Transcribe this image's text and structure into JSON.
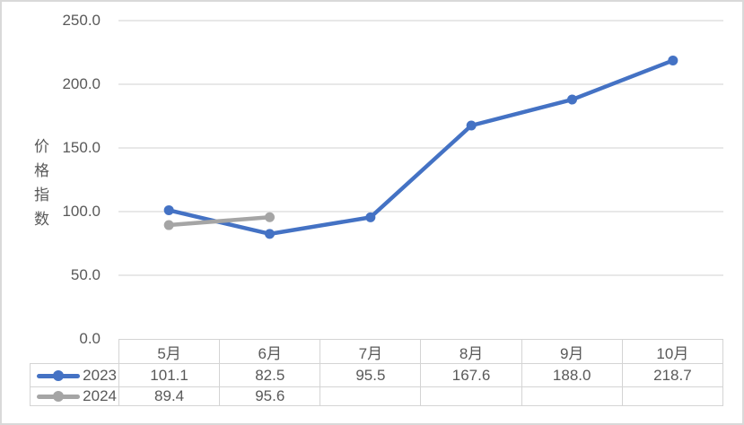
{
  "chart_data": {
    "type": "line",
    "categories": [
      "5月",
      "6月",
      "7月",
      "8月",
      "9月",
      "10月"
    ],
    "series": [
      {
        "name": "2023",
        "color": "#4472C4",
        "values": [
          101.1,
          82.5,
          95.5,
          167.6,
          188.0,
          218.7
        ],
        "display_values": [
          "101.1",
          "82.5",
          "95.5",
          "167.6",
          "188.0",
          "218.7"
        ]
      },
      {
        "name": "2024",
        "color": "#A5A5A5",
        "values": [
          89.4,
          95.6,
          null,
          null,
          null,
          null
        ],
        "display_values": [
          "89.4",
          "95.6",
          "",
          "",
          "",
          ""
        ]
      }
    ],
    "title": "",
    "xlabel": "",
    "ylabel": "价格指数",
    "ylim": [
      0,
      250
    ],
    "ytick_step": 50,
    "ytick_labels": [
      "0.0",
      "50.0",
      "100.0",
      "150.0",
      "200.0",
      "250.0"
    ],
    "grid": true,
    "gridline_color": "#D9D9D9",
    "text_color": "#595959",
    "legend_position": "data-table-left",
    "marker": "circle"
  }
}
